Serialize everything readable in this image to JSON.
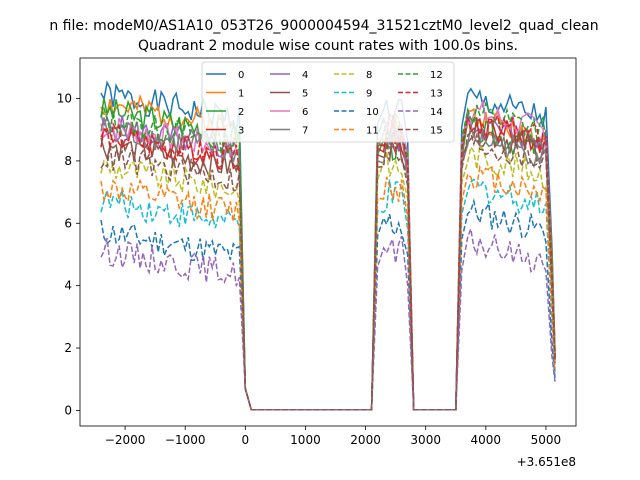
{
  "suptitle": "n file: modeM0/AS1A10_053T26_9000004594_31521cztM0_level2_quad_clean",
  "title": "Quadrant 2 module wise count rates with 100.0s bins.",
  "offset_label": "+3.651e8",
  "chart_data": {
    "type": "line",
    "title": "Quadrant 2 module wise count rates with 100.0s bins.",
    "x_offset": 365100000,
    "xlim": [
      -2750,
      5500
    ],
    "ylim": [
      -0.5,
      11.3
    ],
    "xticks": [
      -2000,
      -1000,
      0,
      1000,
      2000,
      3000,
      4000,
      5000
    ],
    "xtick_labels": [
      "−2000",
      "−1000",
      "0",
      "1000",
      "2000",
      "3000",
      "4000",
      "5000"
    ],
    "yticks": [
      0,
      2,
      4,
      6,
      8,
      10
    ],
    "ytick_labels": [
      "0",
      "2",
      "4",
      "6",
      "8",
      "10"
    ],
    "grid": false,
    "legend_position": "upper center",
    "segments": [
      [
        -2400,
        -100
      ],
      [
        2200,
        2700
      ],
      [
        3700,
        5000
      ]
    ],
    "series": [
      {
        "name": "0",
        "color": "#1f77b4",
        "dash": "solid",
        "level": 9.6,
        "seg2": 9.6,
        "seed": 1
      },
      {
        "name": "1",
        "color": "#ff7f0e",
        "dash": "solid",
        "level": 9.3,
        "seg2": 9.0,
        "seed": 2
      },
      {
        "name": "2",
        "color": "#2ca02c",
        "dash": "solid",
        "level": 9.1,
        "seg2": 8.6,
        "seed": 3
      },
      {
        "name": "3",
        "color": "#d62728",
        "dash": "solid",
        "level": 8.3,
        "seg2": 8.8,
        "seed": 4
      },
      {
        "name": "4",
        "color": "#9467bd",
        "dash": "solid",
        "level": 8.6,
        "seg2": 8.8,
        "seed": 5
      },
      {
        "name": "5",
        "color": "#8c564b",
        "dash": "solid",
        "level": 8.0,
        "seg2": 8.6,
        "seed": 6
      },
      {
        "name": "6",
        "color": "#e377c2",
        "dash": "solid",
        "level": 8.6,
        "seg2": 9.2,
        "seed": 7
      },
      {
        "name": "7",
        "color": "#7f7f7f",
        "dash": "solid",
        "level": 8.5,
        "seg2": 8.4,
        "seed": 8
      },
      {
        "name": "8",
        "color": "#bcbd22",
        "dash": "dashed",
        "level": 7.3,
        "seg2": 7.8,
        "seed": 9
      },
      {
        "name": "9",
        "color": "#17becf",
        "dash": "dashed",
        "level": 6.2,
        "seg2": 6.8,
        "seed": 10
      },
      {
        "name": "10",
        "color": "#1f77b4",
        "dash": "dashed",
        "level": 5.2,
        "seg2": 6.0,
        "seed": 11
      },
      {
        "name": "11",
        "color": "#ff7f0e",
        "dash": "dashed",
        "level": 6.6,
        "seg2": 7.2,
        "seed": 12
      },
      {
        "name": "12",
        "color": "#2ca02c",
        "dash": "dashed",
        "level": 8.8,
        "seg2": 9.2,
        "seed": 13
      },
      {
        "name": "13",
        "color": "#d62728",
        "dash": "dashed",
        "level": 8.3,
        "seg2": 8.9,
        "seed": 14
      },
      {
        "name": "14",
        "color": "#9467bd",
        "dash": "dashed",
        "level": 4.6,
        "seg2": 5.0,
        "seed": 15
      },
      {
        "name": "15",
        "color": "#8c564b",
        "dash": "dashed",
        "level": 7.6,
        "seg2": 8.2,
        "seed": 16
      }
    ]
  }
}
